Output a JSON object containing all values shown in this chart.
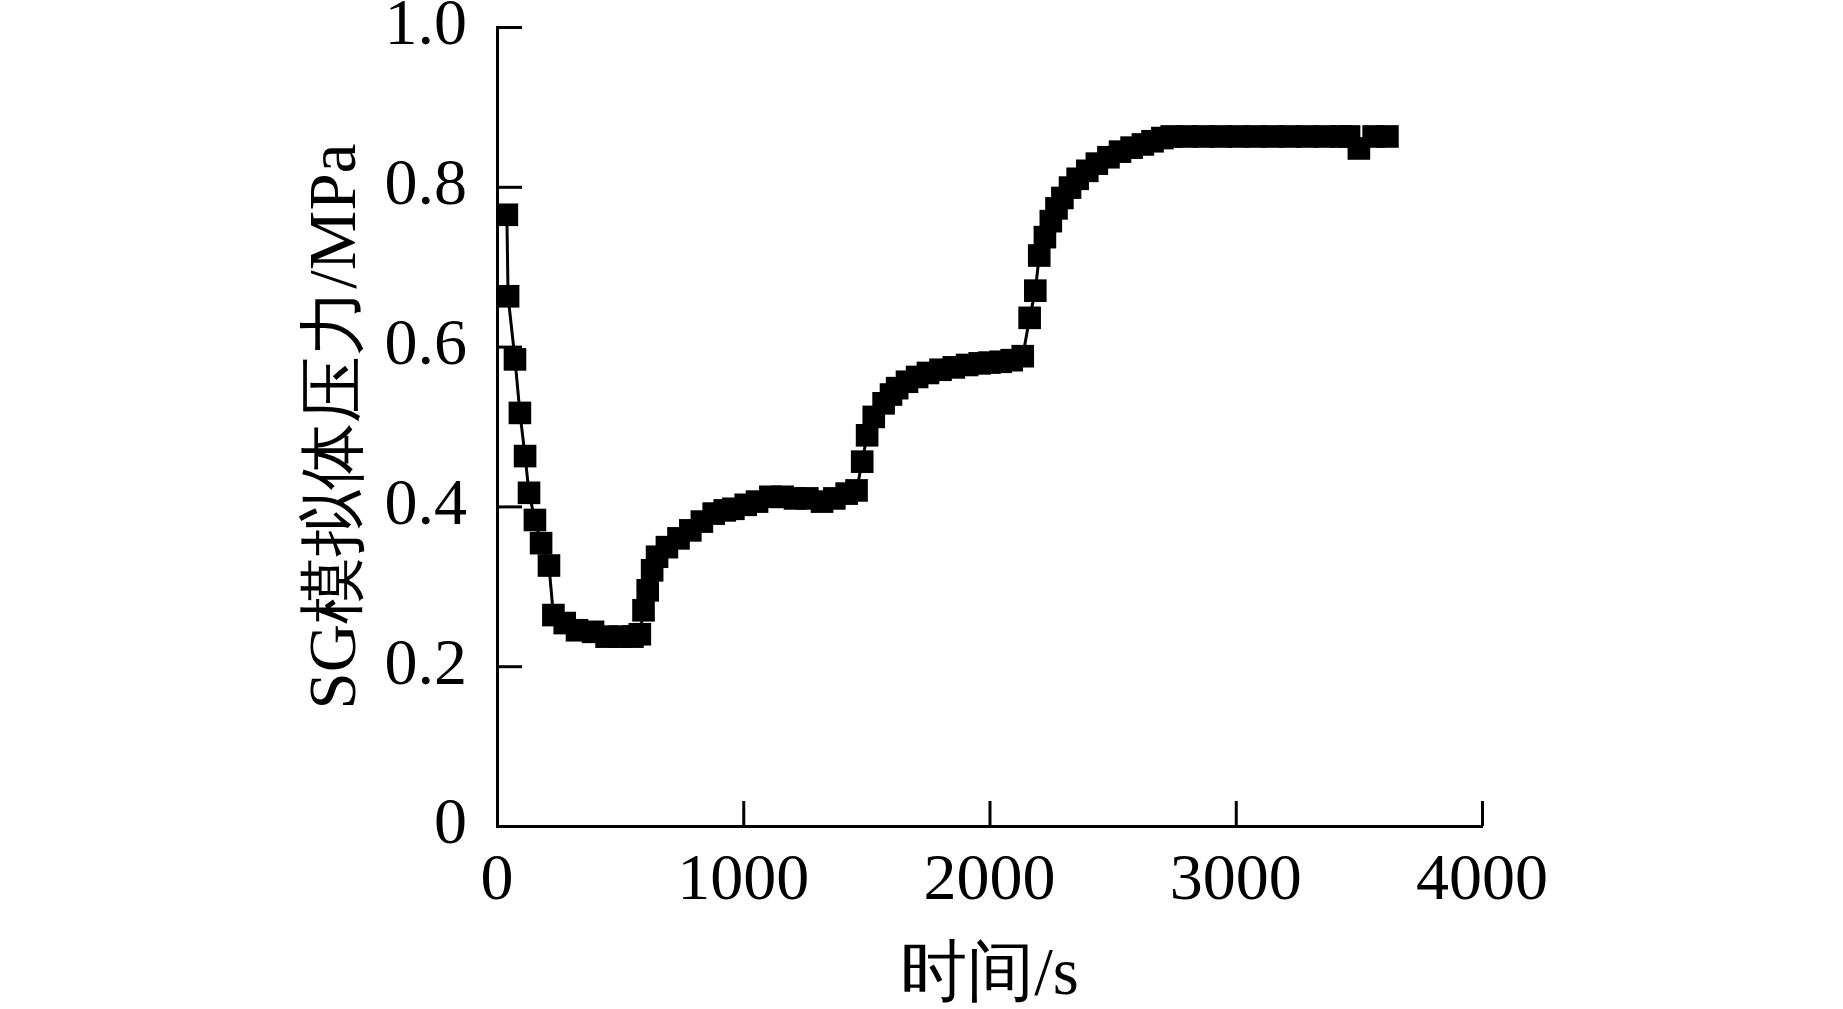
{
  "chart_data": {
    "type": "line",
    "xlabel": "时间/s",
    "ylabel": "SG模拟体压力/MPa",
    "x": [
      40,
      45,
      73,
      93,
      114,
      130,
      154,
      179,
      211,
      229,
      275,
      325,
      390,
      445,
      500,
      550,
      580,
      595,
      612,
      630,
      650,
      690,
      737,
      785,
      832,
      880,
      925,
      960,
      1010,
      1056,
      1110,
      1160,
      1210,
      1260,
      1320,
      1370,
      1420,
      1460,
      1483,
      1503,
      1530,
      1570,
      1600,
      1625,
      1665,
      1706,
      1750,
      1801,
      1855,
      1909,
      1960,
      2000,
      2045,
      2090,
      2135,
      2163,
      2186,
      2202,
      2225,
      2249,
      2272,
      2296,
      2327,
      2358,
      2397,
      2436,
      2483,
      2530,
      2577,
      2623,
      2662,
      2702,
      2740,
      2800,
      2870,
      2940,
      3010,
      3080,
      3150,
      3220,
      3290,
      3360,
      3430,
      3460,
      3500,
      3560,
      3616
    ],
    "series": [
      {
        "color": "#000000",
        "values": [
          0.765,
          0.663,
          0.584,
          0.517,
          0.463,
          0.417,
          0.383,
          0.354,
          0.326,
          0.264,
          0.254,
          0.245,
          0.243,
          0.237,
          0.237,
          0.237,
          0.24,
          0.27,
          0.295,
          0.32,
          0.337,
          0.349,
          0.36,
          0.37,
          0.381,
          0.391,
          0.395,
          0.397,
          0.402,
          0.406,
          0.412,
          0.412,
          0.41,
          0.41,
          0.406,
          0.41,
          0.416,
          0.42,
          0.456,
          0.489,
          0.512,
          0.529,
          0.54,
          0.548,
          0.556,
          0.562,
          0.567,
          0.571,
          0.574,
          0.577,
          0.579,
          0.58,
          0.581,
          0.583,
          0.588,
          0.636,
          0.67,
          0.714,
          0.737,
          0.757,
          0.773,
          0.786,
          0.799,
          0.81,
          0.82,
          0.829,
          0.837,
          0.844,
          0.849,
          0.853,
          0.857,
          0.861,
          0.863,
          0.863,
          0.863,
          0.863,
          0.863,
          0.863,
          0.863,
          0.863,
          0.863,
          0.863,
          0.863,
          0.863,
          0.848,
          0.863,
          0.863
        ]
      }
    ],
    "xlim": [
      0,
      4000
    ],
    "xticks": [
      0,
      1000,
      2000,
      3000,
      4000
    ],
    "ylim": [
      0,
      1
    ],
    "yticks": [
      0,
      0.2,
      0.4,
      0.6,
      0.8,
      {
        "value": 1,
        "label": "1.0"
      }
    ],
    "marker": "square",
    "line_style": "solid"
  }
}
